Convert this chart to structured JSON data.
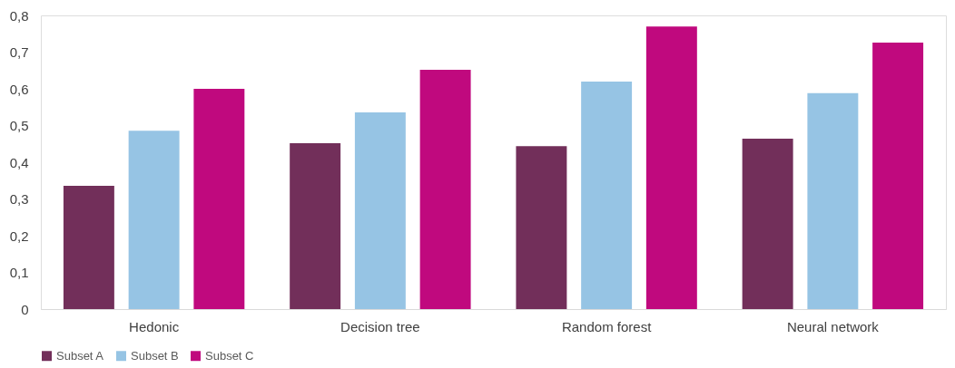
{
  "chart_data": {
    "type": "bar",
    "categories": [
      "Hedonic",
      "Decision tree",
      "Random forest",
      "Neural network"
    ],
    "series": [
      {
        "name": "Subset A",
        "color": "#722f5a",
        "values": [
          0.336,
          0.452,
          0.444,
          0.464
        ]
      },
      {
        "name": "Subset B",
        "color": "#96c4e4",
        "values": [
          0.486,
          0.536,
          0.62,
          0.588
        ]
      },
      {
        "name": "Subset C",
        "color": "#c0097e",
        "values": [
          0.6,
          0.652,
          0.77,
          0.726
        ]
      }
    ],
    "ylim": [
      0,
      0.8
    ],
    "yticks": [
      {
        "value": 0,
        "label": "0"
      },
      {
        "value": 0.1,
        "label": "0,1"
      },
      {
        "value": 0.2,
        "label": "0,2"
      },
      {
        "value": 0.3,
        "label": "0,3"
      },
      {
        "value": 0.4,
        "label": "0,4"
      },
      {
        "value": 0.5,
        "label": "0,5"
      },
      {
        "value": 0.6,
        "label": "0,6"
      },
      {
        "value": 0.7,
        "label": "0,7"
      },
      {
        "value": 0.8,
        "label": "0,8"
      }
    ],
    "grid": false,
    "legend": "bottom"
  }
}
